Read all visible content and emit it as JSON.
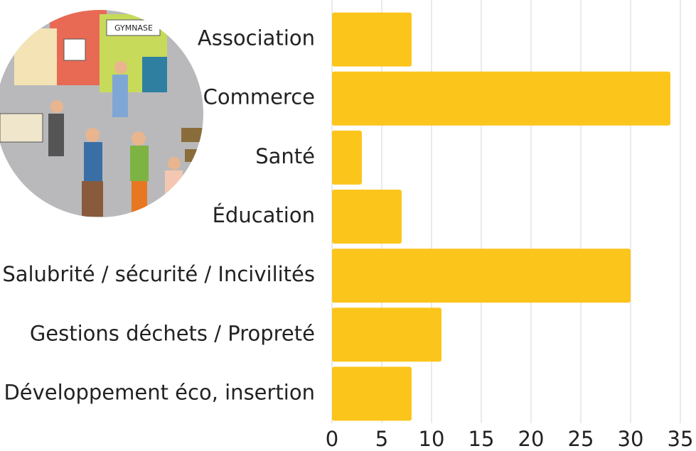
{
  "chart_data": {
    "type": "bar",
    "orientation": "horizontal",
    "categories": [
      "Association",
      "Commerce",
      "Santé",
      "Éducation",
      "Salubrité / sécurité / Incivilités",
      "Gestions déchets / Propreté",
      "Développement éco, insertion"
    ],
    "values": [
      8,
      34,
      3,
      7,
      30,
      11,
      8
    ],
    "color": "#fcc51c",
    "xlim": [
      0,
      35
    ],
    "xticks": [
      0,
      5,
      10,
      15,
      20,
      25,
      30,
      35
    ],
    "grid": true
  }
}
